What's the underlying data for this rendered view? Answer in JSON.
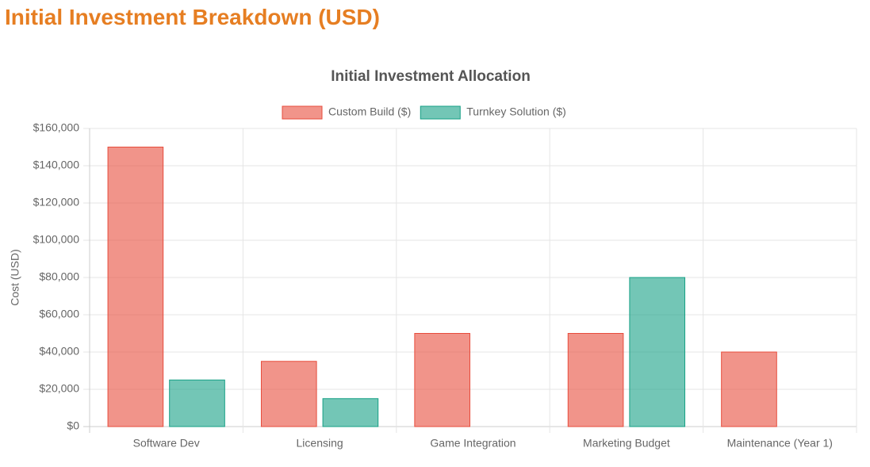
{
  "heading": "Initial Investment Breakdown (USD)",
  "chart_data": {
    "type": "bar",
    "title": "Initial Investment Allocation",
    "y_label": "Cost (USD)",
    "categories": [
      "Software Dev",
      "Licensing",
      "Game Integration",
      "Marketing Budget",
      "Maintenance (Year 1)"
    ],
    "series": [
      {
        "name": "Custom Build ($)",
        "color": "#e74c3c",
        "values": [
          150000,
          35000,
          50000,
          50000,
          40000
        ]
      },
      {
        "name": "Turnkey Solution ($)",
        "color": "#16a085",
        "values": [
          25000,
          15000,
          0,
          80000,
          0
        ]
      }
    ],
    "ylim": [
      0,
      160000
    ],
    "yticks": [
      {
        "value": 0,
        "label": "$0"
      },
      {
        "value": 20000,
        "label": "$20,000"
      },
      {
        "value": 40000,
        "label": "$40,000"
      },
      {
        "value": 60000,
        "label": "$60,000"
      },
      {
        "value": 80000,
        "label": "$80,000"
      },
      {
        "value": 100000,
        "label": "$100,000"
      },
      {
        "value": 120000,
        "label": "$120,000"
      },
      {
        "value": 140000,
        "label": "$140,000"
      },
      {
        "value": 160000,
        "label": "$160,000"
      }
    ],
    "grid": true,
    "legend": "top"
  }
}
